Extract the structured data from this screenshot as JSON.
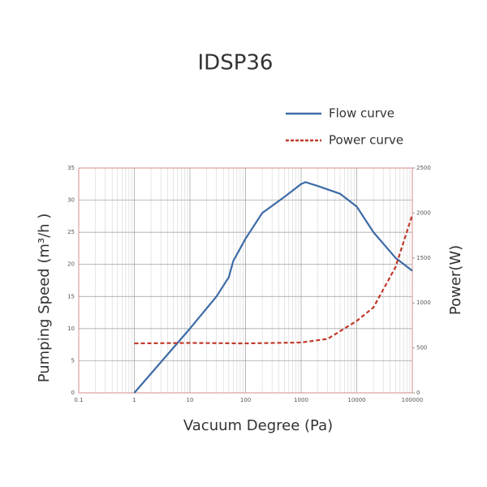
{
  "chart_data": {
    "type": "line",
    "title": "IDSP36",
    "x_label": "Vacuum Degree (Pa)",
    "y_label": "Pumping Speed (m³/h )",
    "y2_label": "Power(W)",
    "xscale": "log",
    "xlim": [
      0.1,
      100000
    ],
    "xticks": [
      0.1,
      1,
      10,
      100,
      1000,
      10000,
      100000
    ],
    "ylim": [
      0,
      35
    ],
    "yticks": [
      0,
      5,
      10,
      15,
      20,
      25,
      30,
      35
    ],
    "y2lim": [
      0,
      2500
    ],
    "y2ticks": [
      0,
      500,
      1000,
      1500,
      2000,
      2500
    ],
    "grid": true,
    "minor_grid": true,
    "legend": "top-right",
    "series": [
      {
        "name": "Flow curve",
        "color": "#3d6ba7",
        "style": "solid",
        "x": [
          1,
          10,
          30,
          50,
          60,
          100,
          200,
          500,
          1000,
          1200,
          2000,
          5000,
          10000,
          20000,
          50000,
          100000
        ],
        "values": [
          0,
          10,
          15,
          18,
          20.5,
          24,
          28,
          30.5,
          32.5,
          32.8,
          32.2,
          31,
          29,
          25,
          21,
          19
        ]
      },
      {
        "name": "Power curve",
        "color": "#c0392b",
        "style": "dashed",
        "axis": "y2",
        "x": [
          1,
          10,
          100,
          1000,
          3000,
          10000,
          20000,
          50000,
          100000
        ],
        "values": [
          550,
          555,
          550,
          560,
          600,
          800,
          950,
          1400,
          1980
        ]
      }
    ]
  }
}
